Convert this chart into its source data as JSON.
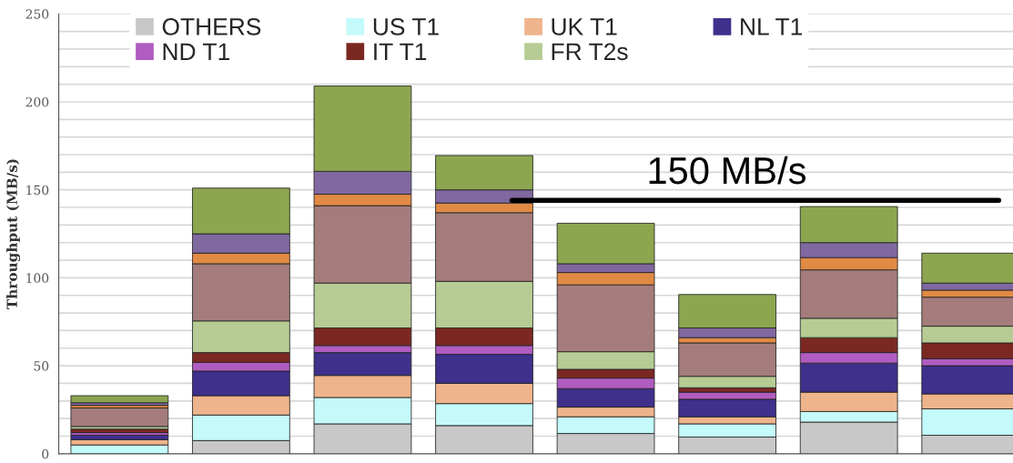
{
  "chart_data": {
    "type": "bar",
    "stacked": true,
    "ylabel": "Throughput (MB/s)",
    "categories": [
      null,
      null,
      null,
      null,
      null,
      null,
      null,
      null
    ],
    "series": [
      {
        "name": "OTHERS",
        "color": "#c8c8c8",
        "values": [
          0,
          7.5,
          17,
          16,
          11.5,
          9.5,
          18,
          10.5
        ]
      },
      {
        "name": "US T1",
        "color": "#c4fafa",
        "values": [
          5,
          14.5,
          15,
          12.5,
          9.5,
          7.5,
          6,
          15
        ]
      },
      {
        "name": "UK T1",
        "color": "#eeb48c",
        "values": [
          3,
          11,
          12.5,
          11.5,
          5.5,
          4,
          11,
          8.5
        ]
      },
      {
        "name": "NL T1",
        "color": "#3f308c",
        "values": [
          2.5,
          14,
          13,
          16.5,
          10.5,
          10,
          16.5,
          16
        ]
      },
      {
        "name": "ND T1",
        "color": "#b05cc0",
        "values": [
          1.5,
          5,
          4,
          5,
          6,
          4,
          6,
          4
        ]
      },
      {
        "name": "IT T1",
        "color": "#7c2822",
        "values": [
          2,
          5.5,
          10,
          10,
          5,
          2.5,
          8.5,
          9
        ]
      },
      {
        "name": "FR T2s",
        "color": "#b6cc94",
        "values": [
          1.5,
          18,
          25.5,
          26.5,
          10,
          6.5,
          11,
          9.5
        ]
      },
      {
        "color": "#a47c7c",
        "values": [
          10.5,
          32.5,
          44,
          39,
          38,
          19,
          27.5,
          16.5
        ]
      },
      {
        "color": "#e08a44",
        "values": [
          1.5,
          6,
          6.5,
          5.5,
          7,
          3,
          7,
          4
        ]
      },
      {
        "color": "#8068a0",
        "values": [
          1.5,
          11,
          13,
          7.5,
          5,
          5.5,
          8.5,
          4
        ]
      },
      {
        "color": "#8ca650",
        "values": [
          4,
          26,
          48.5,
          19.5,
          23,
          19,
          20.5,
          17
        ]
      }
    ],
    "ylim": [
      0,
      250
    ],
    "yticks": [
      0,
      {
        "value": 10,
        "label": null
      },
      {
        "value": 20,
        "label": null
      },
      {
        "value": 30,
        "label": null
      },
      {
        "value": 40,
        "label": null
      },
      50,
      {
        "value": 60,
        "label": null
      },
      {
        "value": 70,
        "label": null
      },
      {
        "value": 80,
        "label": null
      },
      {
        "value": 90,
        "label": null
      },
      100,
      {
        "value": 110,
        "label": null
      },
      {
        "value": 120,
        "label": null
      },
      {
        "value": 130,
        "label": null
      },
      {
        "value": 140,
        "label": null
      },
      150,
      {
        "value": 160,
        "label": null
      },
      {
        "value": 170,
        "label": null
      },
      {
        "value": 180,
        "label": null
      },
      {
        "value": 190,
        "label": null
      },
      200,
      {
        "value": 210,
        "label": null
      },
      {
        "value": 220,
        "label": null
      },
      {
        "value": 230,
        "label": null
      },
      {
        "value": 240,
        "label": null
      },
      250
    ],
    "ref_lines": [
      {
        "axis": "y",
        "value": 144,
        "label": "150 MB/s",
        "color": "#000000"
      }
    ],
    "grid": "y",
    "legend": "top"
  }
}
